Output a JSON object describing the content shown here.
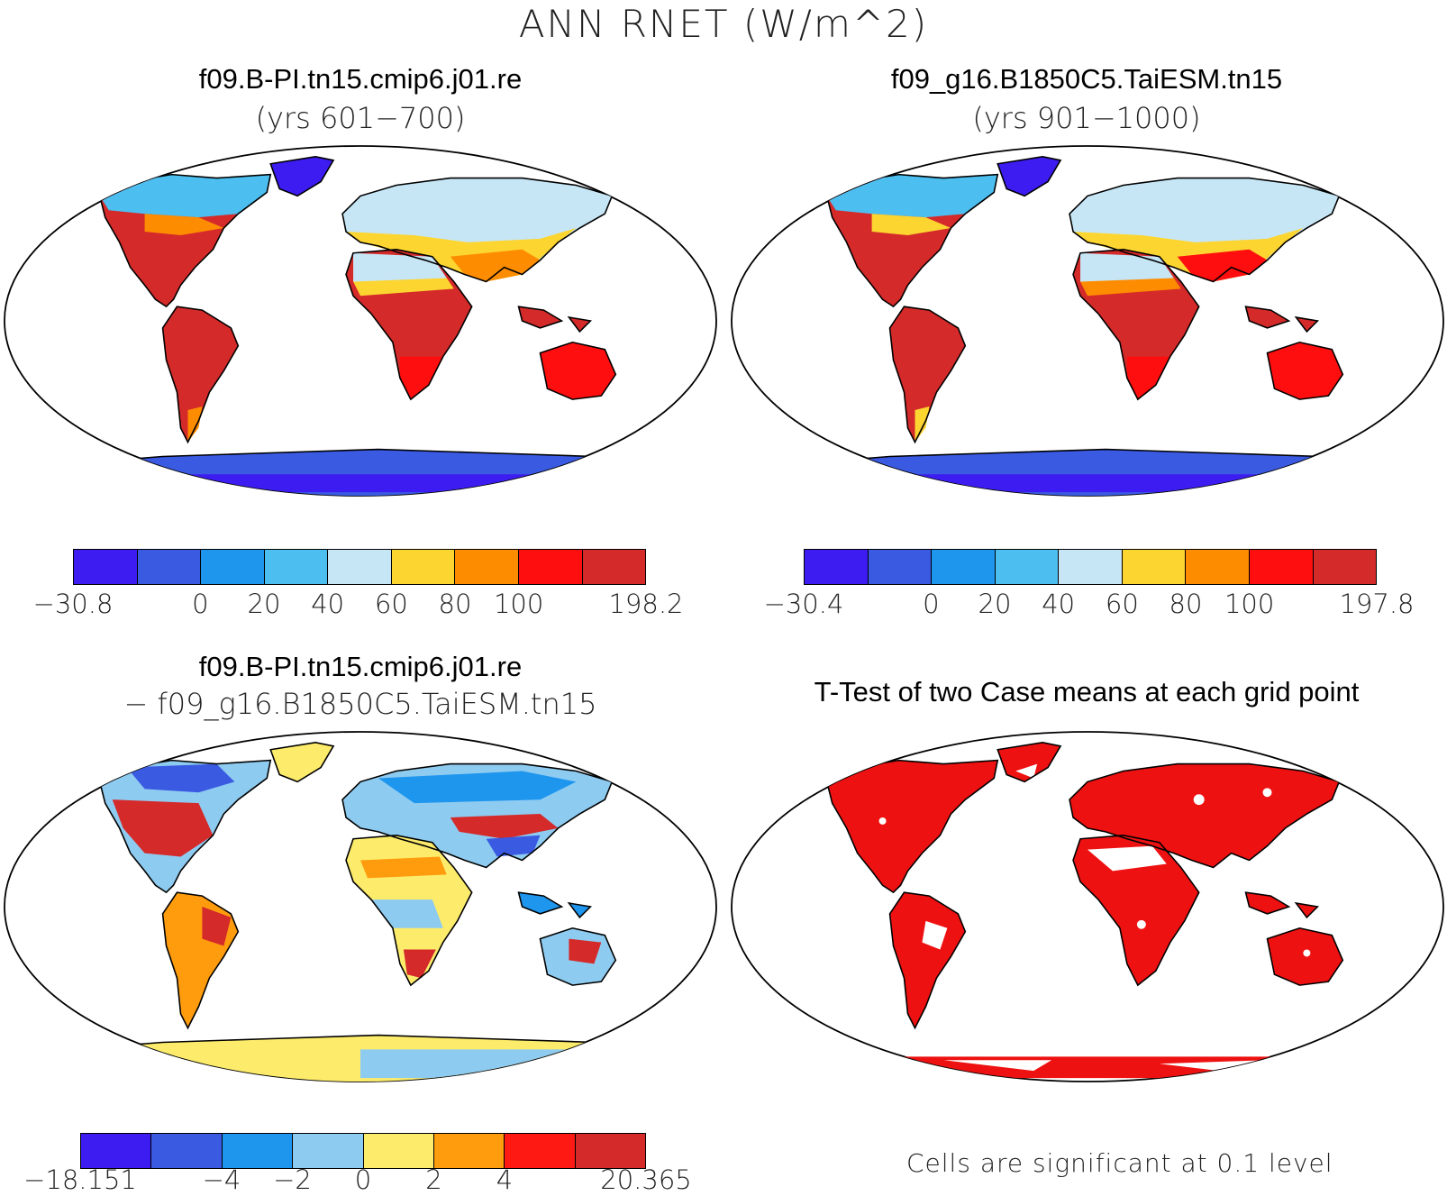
{
  "figure": {
    "title": "ANN RNET (W/m^2)"
  },
  "panels": [
    {
      "id": "case1",
      "title_line1": "f09.B-PI.tn15.cmip6.j01.re",
      "title_line2": "(yrs 601−700)",
      "colorbar": {
        "colors": [
          "#3c1cf0",
          "#3a5ae2",
          "#1e96ee",
          "#4cbff0",
          "#c6e6f6",
          "#fdd530",
          "#fe8c00",
          "#fe0e0e",
          "#d42a2a"
        ],
        "labels": [
          "−30.8",
          "0",
          "20",
          "40",
          "60",
          "80",
          "100",
          "198.2"
        ],
        "label_boundaries": [
          0,
          2,
          3,
          4,
          5,
          6,
          7,
          9
        ]
      }
    },
    {
      "id": "case2",
      "title_line1": "f09_g16.B1850C5.TaiESM.tn15",
      "title_line2": "(yrs 901−1000)",
      "colorbar": {
        "colors": [
          "#3c1cf0",
          "#3a5ae2",
          "#1e96ee",
          "#4cbff0",
          "#c6e6f6",
          "#fdd530",
          "#fe8c00",
          "#fe0e0e",
          "#d42a2a"
        ],
        "labels": [
          "−30.4",
          "0",
          "20",
          "40",
          "60",
          "80",
          "100",
          "197.8"
        ],
        "label_boundaries": [
          0,
          2,
          3,
          4,
          5,
          6,
          7,
          9
        ]
      }
    },
    {
      "id": "difference",
      "title_line1": "f09.B-PI.tn15.cmip6.j01.re",
      "title_line2": "− f09_g16.B1850C5.TaiESM.tn15",
      "colorbar": {
        "colors": [
          "#3c1cf0",
          "#3a5ae2",
          "#1e96ee",
          "#8ecbf0",
          "#fdec6c",
          "#fe9c0e",
          "#fe1a12",
          "#d42a2a"
        ],
        "labels": [
          "−18.151",
          "−4",
          "−2",
          "0",
          "2",
          "4",
          "20.365"
        ],
        "label_boundaries": [
          0,
          2,
          3,
          4,
          5,
          6,
          8
        ]
      }
    },
    {
      "id": "ttest",
      "title_line1": "T-Test of two Case means at each grid point",
      "footnote": "Cells are significant at 0.1 level",
      "fill_color": "#ee1111"
    }
  ]
}
